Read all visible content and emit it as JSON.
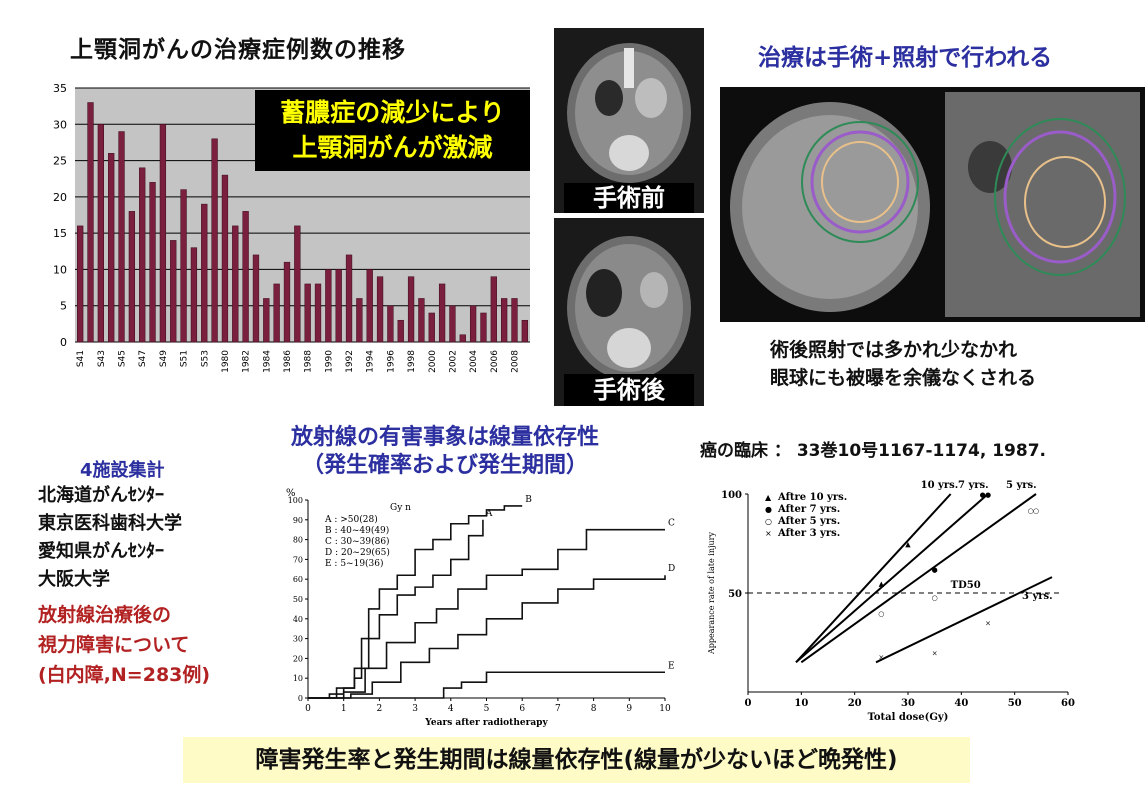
{
  "main_title": "上顎洞がんの治療症例数の推移",
  "callout": {
    "line1": "蓄膿症の減少により",
    "line2": "上顎洞がんが激減"
  },
  "chart_data": [
    {
      "type": "bar",
      "title": "上顎洞がんの治療症例数の推移",
      "ylim": [
        0,
        35
      ],
      "yticks": [
        0,
        5,
        10,
        15,
        20,
        25,
        30,
        35
      ],
      "grid": true,
      "colors": {
        "bar": "#7a1f3d",
        "plot_bg": "#c4c4c4"
      },
      "categories": [
        "S41",
        "S42",
        "S43",
        "S44",
        "S45",
        "S46",
        "S47",
        "S48",
        "S49",
        "S50",
        "S51",
        "S52",
        "S53",
        "S54",
        "1980",
        "1981",
        "1982",
        "1983",
        "1984",
        "1985",
        "1986",
        "1987",
        "1988",
        "1989",
        "1990",
        "1991",
        "1992",
        "1993",
        "1994",
        "1995",
        "1996",
        "1997",
        "1998",
        "1999",
        "2000",
        "2001",
        "2002",
        "2003",
        "2004",
        "2005",
        "2006",
        "2007",
        "2008",
        "2009"
      ],
      "tick_labels": [
        "S41",
        "S43",
        "S45",
        "S47",
        "S49",
        "S51",
        "S53",
        "1980",
        "1982",
        "1984",
        "1986",
        "1988",
        "1990",
        "1992",
        "1994",
        "1996",
        "1998",
        "2000",
        "2002",
        "2004",
        "2006",
        "2008"
      ],
      "values": [
        16,
        33,
        30,
        26,
        29,
        18,
        24,
        22,
        30,
        14,
        21,
        13,
        19,
        28,
        23,
        16,
        18,
        12,
        6,
        8,
        11,
        16,
        8,
        8,
        10,
        10,
        12,
        6,
        10,
        9,
        5,
        3,
        9,
        6,
        4,
        8,
        5,
        1,
        5,
        4,
        9,
        6,
        6,
        3
      ]
    },
    {
      "type": "line",
      "title": "",
      "ylabel": "%",
      "xlabel": "Years after radiotherapy",
      "xlim": [
        0,
        10
      ],
      "ylim": [
        0,
        100
      ],
      "xticks": [
        0,
        1,
        2,
        3,
        4,
        5,
        6,
        7,
        8,
        9,
        10
      ],
      "yticks": [
        0,
        10,
        20,
        30,
        40,
        50,
        60,
        70,
        80,
        90,
        100
      ],
      "legend_header": "Gy    n",
      "legend": [
        "A :    >50(28)",
        "B : 40~49(49)",
        "C : 30~39(86)",
        "D : 20~29(65)",
        "E :  5~19(36)"
      ],
      "series": [
        {
          "name": "A",
          "label": "A",
          "x": [
            0,
            0.6,
            1,
            1.3,
            1.5,
            2,
            2.5,
            3,
            3.5,
            4,
            4.5,
            4.9
          ],
          "y": [
            0,
            2,
            5,
            10,
            30,
            42,
            52,
            56,
            62,
            70,
            82,
            90
          ]
        },
        {
          "name": "B",
          "label": "B",
          "x": [
            0,
            0.8,
            1.3,
            1.7,
            2,
            2.5,
            3,
            3.5,
            4,
            4.5,
            5,
            5.5,
            6
          ],
          "y": [
            0,
            5,
            15,
            45,
            55,
            62,
            75,
            80,
            88,
            92,
            95,
            97,
            97
          ]
        },
        {
          "name": "C",
          "label": "C",
          "x": [
            0,
            1,
            1.6,
            2.2,
            3,
            3.6,
            4.2,
            5,
            6,
            7,
            7.8,
            10
          ],
          "y": [
            0,
            3,
            15,
            28,
            38,
            45,
            55,
            62,
            65,
            75,
            85,
            85
          ]
        },
        {
          "name": "D",
          "label": "D",
          "x": [
            0,
            1.2,
            1.8,
            2.6,
            3.4,
            4.2,
            5,
            6,
            7,
            8,
            10
          ],
          "y": [
            0,
            2,
            8,
            18,
            25,
            32,
            40,
            48,
            55,
            60,
            62
          ]
        },
        {
          "name": "E",
          "label": "E",
          "x": [
            0,
            3.8,
            4.3,
            5,
            6,
            7,
            8,
            10
          ],
          "y": [
            0,
            5,
            8,
            13,
            13,
            13,
            13,
            13
          ]
        }
      ]
    },
    {
      "type": "scatter",
      "title": "",
      "xlabel": "Total dose(Gy)",
      "ylabel": "Appearance rate of late injury",
      "xlim": [
        0,
        60
      ],
      "ylim": [
        0,
        100
      ],
      "xticks": [
        0,
        10,
        20,
        30,
        40,
        50,
        60
      ],
      "yticks": [
        50,
        100
      ],
      "legend": [
        "Aftre 10 yrs.",
        "After 7 yrs.",
        "After 5 yrs.",
        "After 3 yrs."
      ],
      "td50_label": "TD50",
      "td50_value": 50,
      "series": [
        {
          "name": "Aftre 10 yrs.",
          "label": "10 yrs.",
          "line": [
            [
              9,
              15
            ],
            [
              38,
              100
            ]
          ],
          "points": [
            [
              30,
              75
            ],
            [
              25,
              55
            ]
          ]
        },
        {
          "name": "After 7 yrs.",
          "label": "7 yrs.",
          "line": [
            [
              9,
              15
            ],
            [
              45,
              100
            ]
          ],
          "points": [
            [
              44,
              100
            ],
            [
              45,
              100
            ],
            [
              35,
              62
            ]
          ]
        },
        {
          "name": "After 5 yrs.",
          "label": "5 yrs.",
          "line": [
            [
              10,
              15
            ],
            [
              54,
              100
            ]
          ],
          "points": [
            [
              25,
              40
            ],
            [
              35,
              48
            ],
            [
              53,
              92
            ],
            [
              54,
              92
            ]
          ]
        },
        {
          "name": "After 3 yrs.",
          "label": "3 yrs.",
          "line": [
            [
              24,
              15
            ],
            [
              57,
              58
            ]
          ],
          "points": [
            [
              25,
              18
            ],
            [
              35,
              20
            ],
            [
              45,
              35
            ]
          ]
        }
      ]
    }
  ],
  "ct": {
    "pre_label": "手術前",
    "post_label": "手術後"
  },
  "right_title": "治療は手術+照射で行われる",
  "right_note": {
    "line1": "術後照射では多かれ少なかれ",
    "line2": "眼球にも被曝を余儀なくされる"
  },
  "mid_title": {
    "line1": "放射線の有害事象は線量依存性",
    "line2": "（発生確率および発生期間）"
  },
  "citation": "癌の臨床 ： 33巻10号1167-1174, 1987.",
  "left_panel": {
    "heading": "4施設集計",
    "facilities": [
      "北海道がんｾﾝﾀｰ",
      "東京医科歯科大学",
      "愛知県がんｾﾝﾀｰ",
      "大阪大学"
    ],
    "red_lines": [
      "放射線治療後の",
      "視力障害について",
      "(白内障,N=283例)"
    ]
  },
  "banner": "障害発生率と発生期間は線量依存性(線量が少ないほど晩発性)"
}
